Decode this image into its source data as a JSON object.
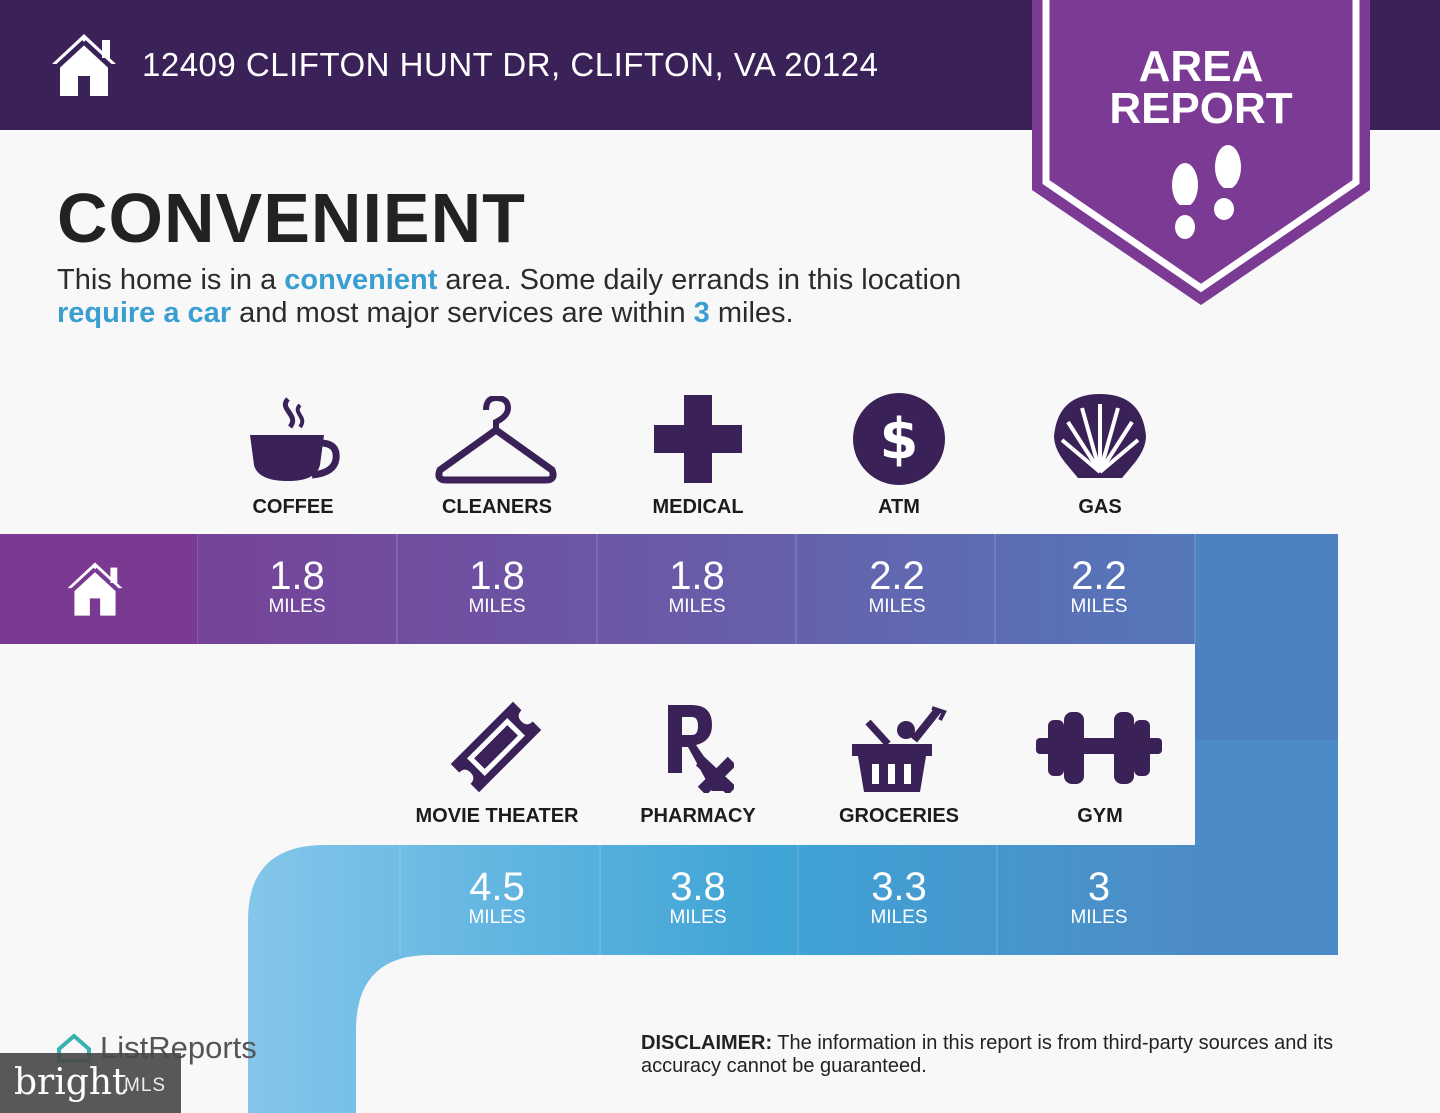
{
  "header": {
    "address": "12409 CLIFTON HUNT DR, CLIFTON, VA 20124"
  },
  "badge": {
    "title_line1": "AREA",
    "title_line2": "REPORT"
  },
  "headline": "CONVENIENT",
  "summary": {
    "p1": "This home is in a ",
    "h1": "convenient",
    "p2": " area. Some daily errands in this location ",
    "h2": "require a car",
    "p3": " and most major services are within ",
    "h3": "3",
    "p4": " miles."
  },
  "services_top": [
    {
      "label": "COFFEE",
      "distance": "1.8",
      "unit": "MILES",
      "icon": "coffee-cup-icon"
    },
    {
      "label": "CLEANERS",
      "distance": "1.8",
      "unit": "MILES",
      "icon": "hanger-icon"
    },
    {
      "label": "MEDICAL",
      "distance": "1.8",
      "unit": "MILES",
      "icon": "medical-cross-icon"
    },
    {
      "label": "ATM",
      "distance": "2.2",
      "unit": "MILES",
      "icon": "dollar-coin-icon"
    },
    {
      "label": "GAS",
      "distance": "2.2",
      "unit": "MILES",
      "icon": "shell-icon"
    }
  ],
  "services_bottom": [
    {
      "label": "MOVIE THEATER",
      "distance": "4.5",
      "unit": "MILES",
      "icon": "ticket-icon"
    },
    {
      "label": "PHARMACY",
      "distance": "3.8",
      "unit": "MILES",
      "icon": "rx-icon"
    },
    {
      "label": "GROCERIES",
      "distance": "3.3",
      "unit": "MILES",
      "icon": "grocery-basket-icon"
    },
    {
      "label": "GYM",
      "distance": "3",
      "unit": "MILES",
      "icon": "dumbbell-icon"
    }
  ],
  "footer": {
    "brand": "ListReports",
    "watermark_word": "bright",
    "watermark_suffix": "MLS",
    "disclaimer_label": "DISCLAIMER:",
    "disclaimer_text": " The information in this report is from third-party sources and its accuracy cannot be guaranteed."
  },
  "colors": {
    "header": "#3a2158",
    "badge": "#7b3a94",
    "accent_text": "#3a9fd0",
    "icon": "#3a2158"
  }
}
